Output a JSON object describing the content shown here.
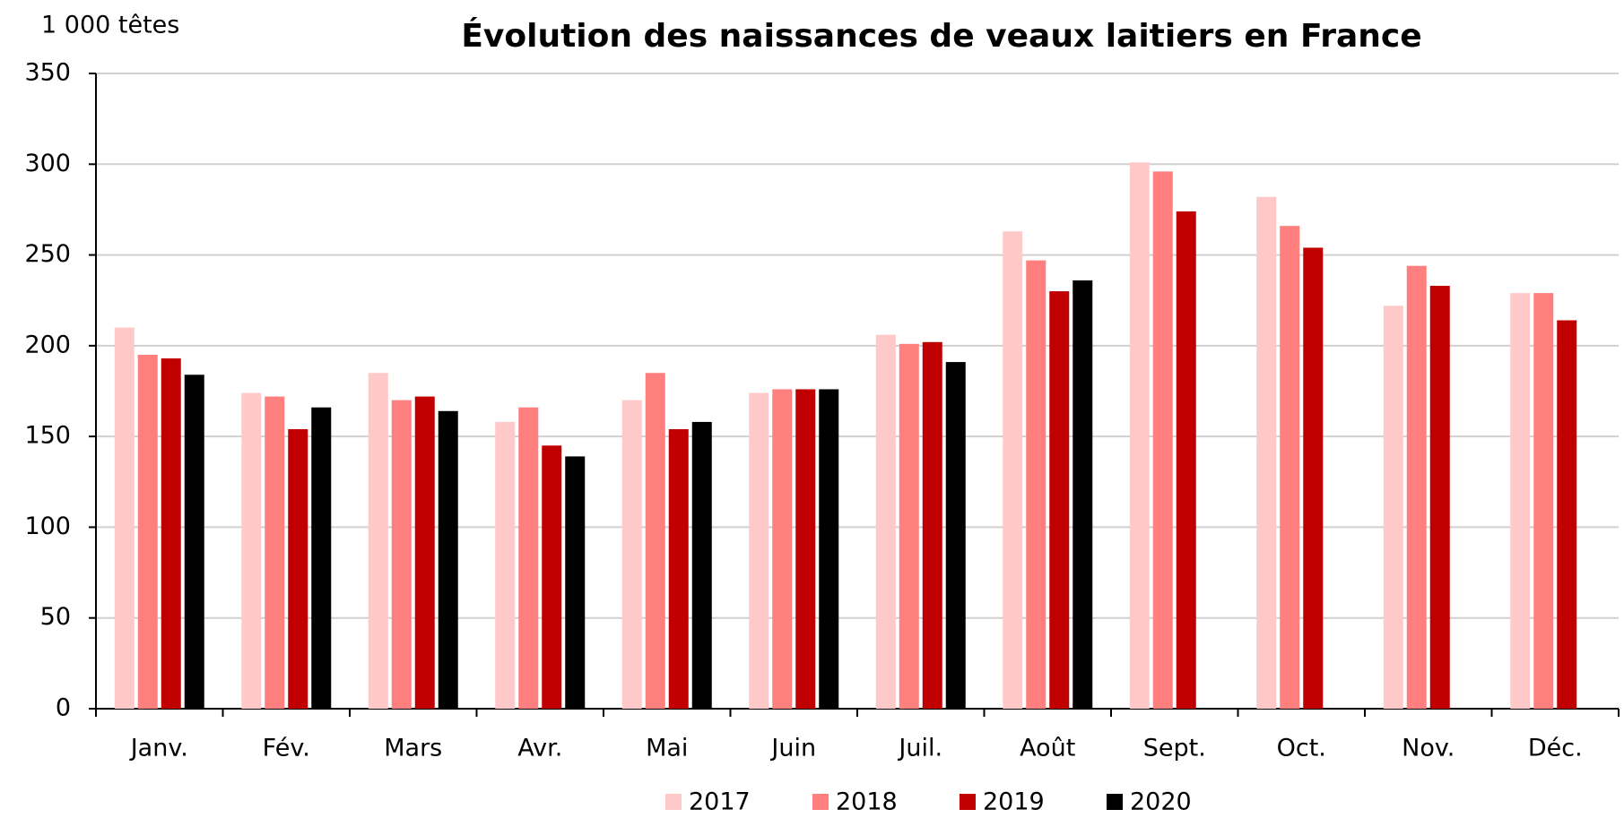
{
  "chart_data": {
    "type": "bar",
    "title": "Évolution des naissances de veaux laitiers en France",
    "y_label": "1 000 têtes",
    "categories": [
      "Janv.",
      "Fév.",
      "Mars",
      "Avr.",
      "Mai",
      "Juin",
      "Juil.",
      "Août",
      "Sept.",
      "Oct.",
      "Nov.",
      "Déc."
    ],
    "series": [
      {
        "name": "2017",
        "color": "#ffc9c9",
        "values": [
          210,
          174,
          185,
          158,
          170,
          174,
          206,
          263,
          301,
          282,
          222,
          229
        ]
      },
      {
        "name": "2018",
        "color": "#ff7f7f",
        "values": [
          195,
          172,
          170,
          166,
          185,
          176,
          201,
          247,
          296,
          266,
          244,
          229
        ]
      },
      {
        "name": "2019",
        "color": "#c00000",
        "values": [
          193,
          154,
          172,
          145,
          154,
          176,
          202,
          230,
          274,
          254,
          233,
          214
        ]
      },
      {
        "name": "2020",
        "color": "#000000",
        "values": [
          184,
          166,
          164,
          139,
          158,
          176,
          191,
          236,
          null,
          null,
          null,
          null
        ]
      }
    ],
    "ylim": [
      0,
      350
    ],
    "yticks": [
      0,
      50,
      100,
      150,
      200,
      250,
      300,
      350
    ],
    "grid": true,
    "legend": "bottom"
  }
}
